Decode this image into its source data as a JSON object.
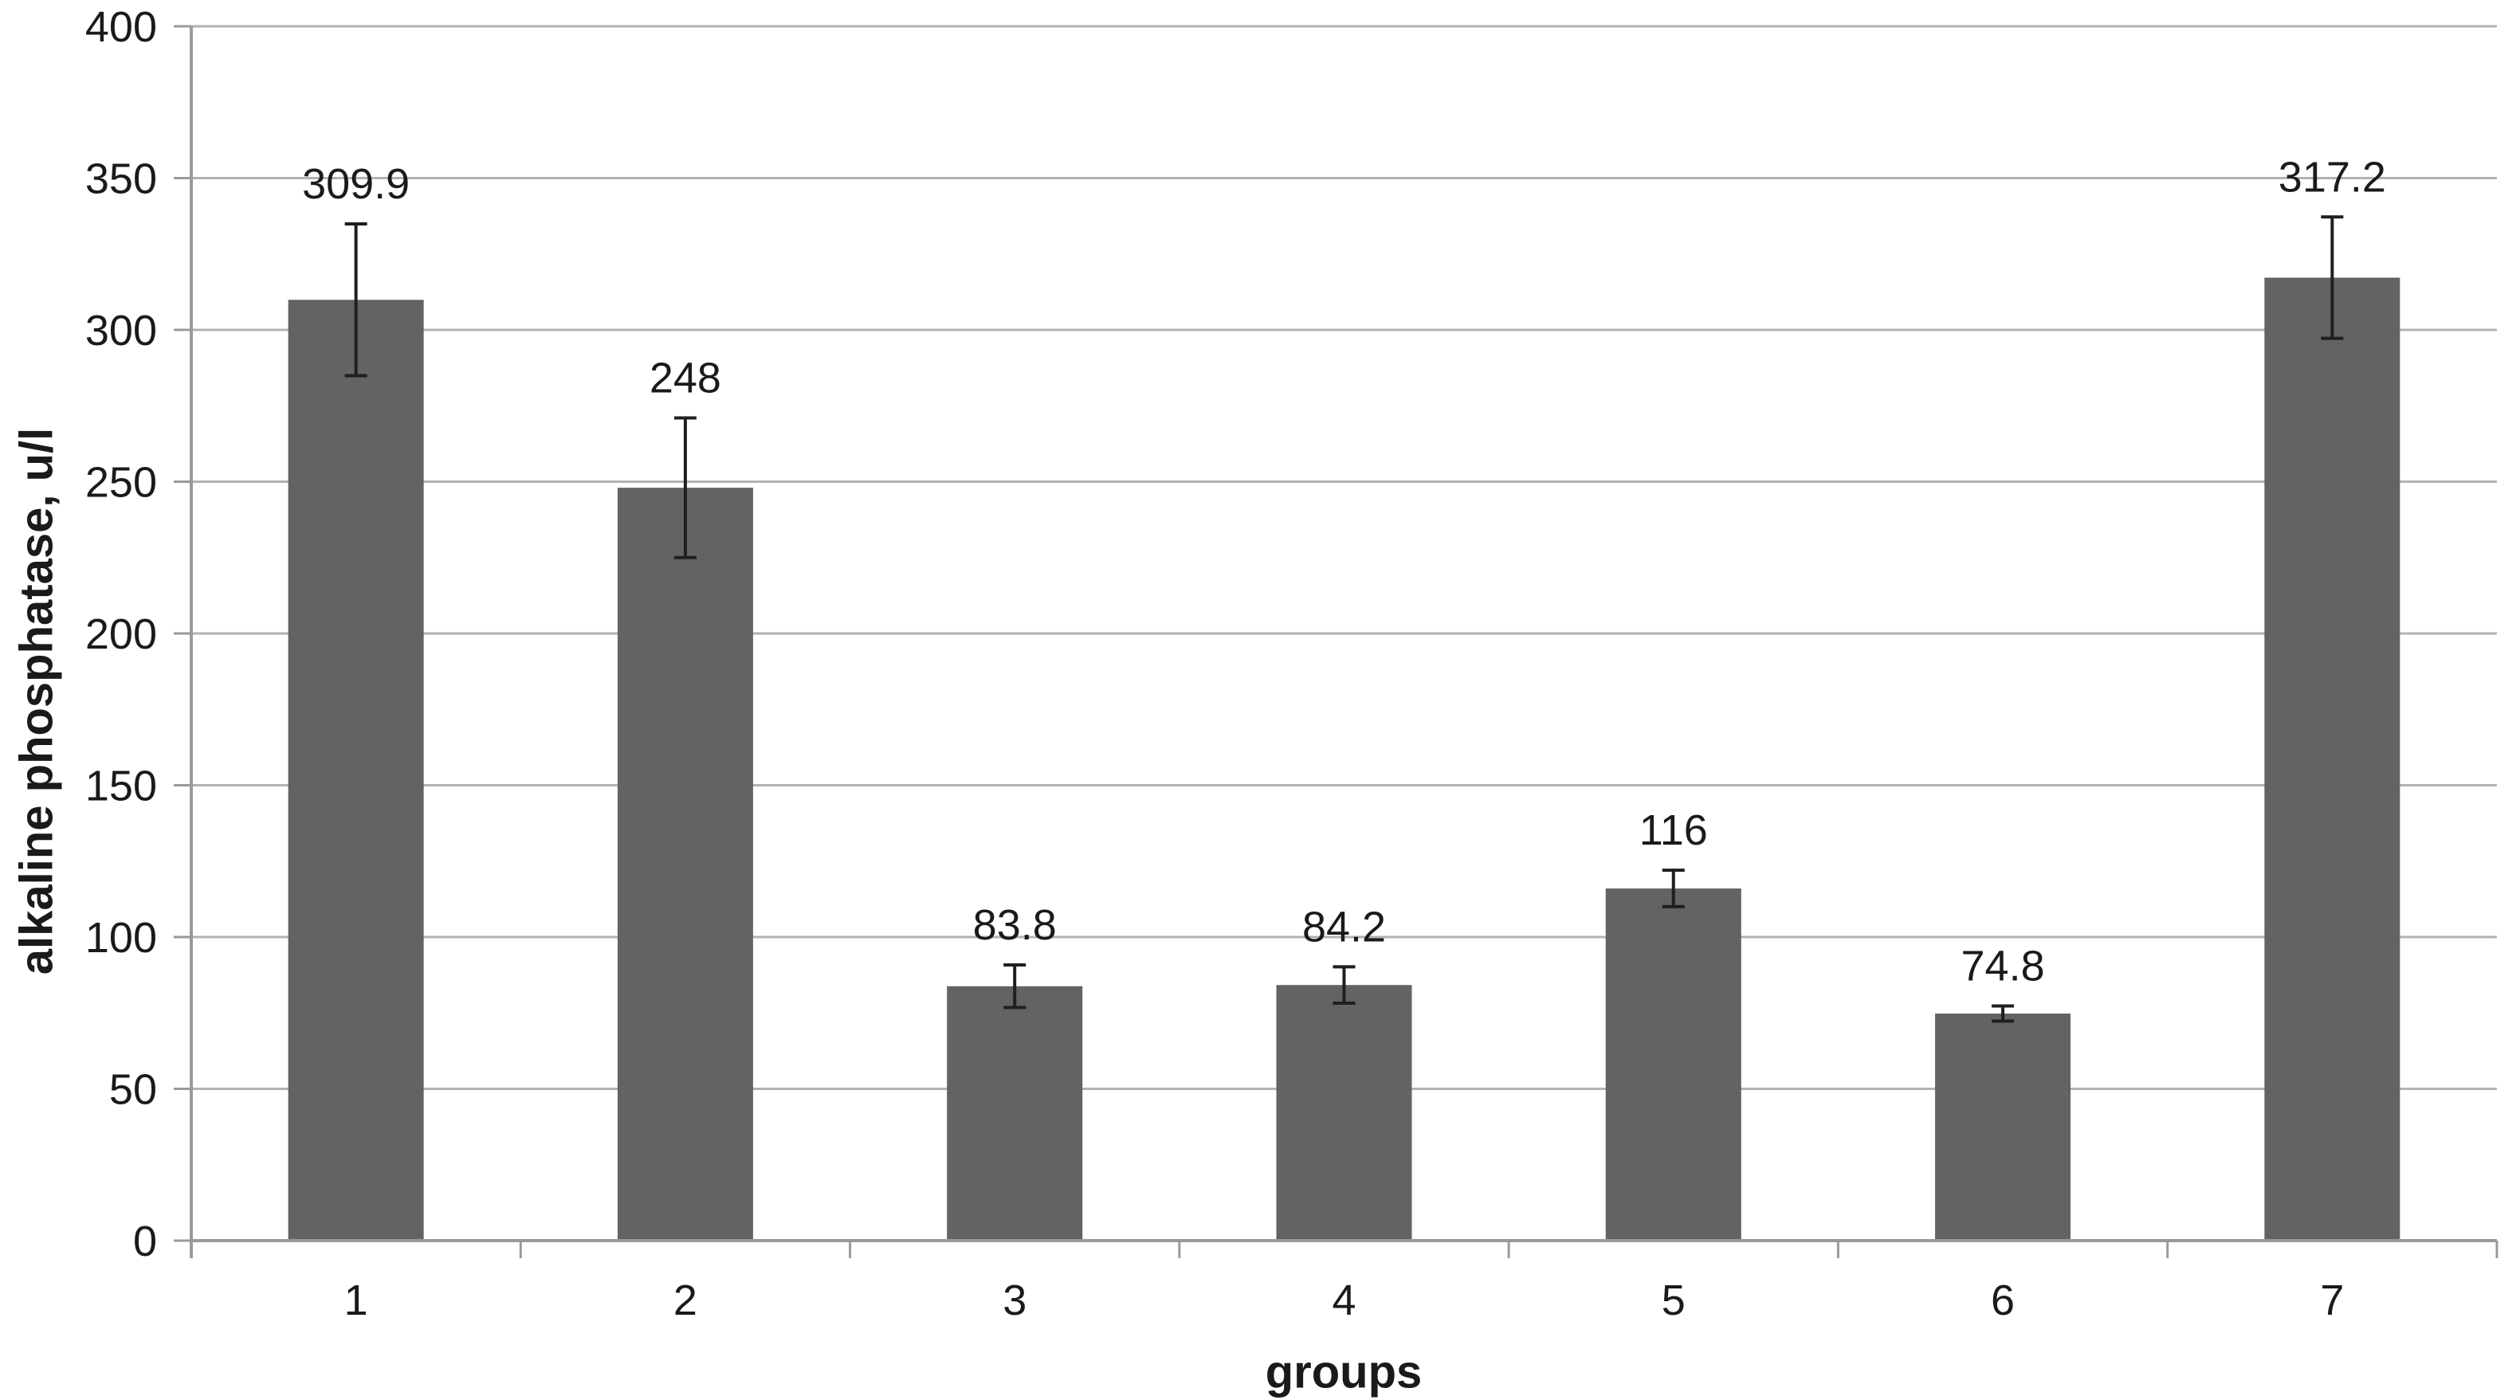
{
  "chart_data": {
    "type": "bar",
    "title": "",
    "xlabel": "groups",
    "ylabel": "alkaline phosphatase, u/l",
    "categories": [
      "1",
      "2",
      "3",
      "4",
      "5",
      "6",
      "7"
    ],
    "values": [
      309.9,
      248,
      83.8,
      84.2,
      116,
      74.8,
      317.2
    ],
    "errors": [
      25,
      23,
      7,
      6,
      6,
      2.5,
      20
    ],
    "data_labels": [
      "309.9",
      "248",
      "83.8",
      "84.2",
      "116",
      "74.8",
      "317.2"
    ],
    "y_axis": {
      "min": 0,
      "max": 400,
      "tick_step": 50,
      "ticks": [
        0,
        50,
        100,
        150,
        200,
        250,
        300,
        350,
        400
      ]
    },
    "grid": true,
    "legend": false,
    "error_bars": true,
    "colors": {
      "bar": "#636363",
      "gridline": "#b2b2b2",
      "axis": "#9a9a9a",
      "error_bar": "#1f1f1f",
      "text": "#1a1a1a",
      "background": "#ffffff"
    }
  }
}
